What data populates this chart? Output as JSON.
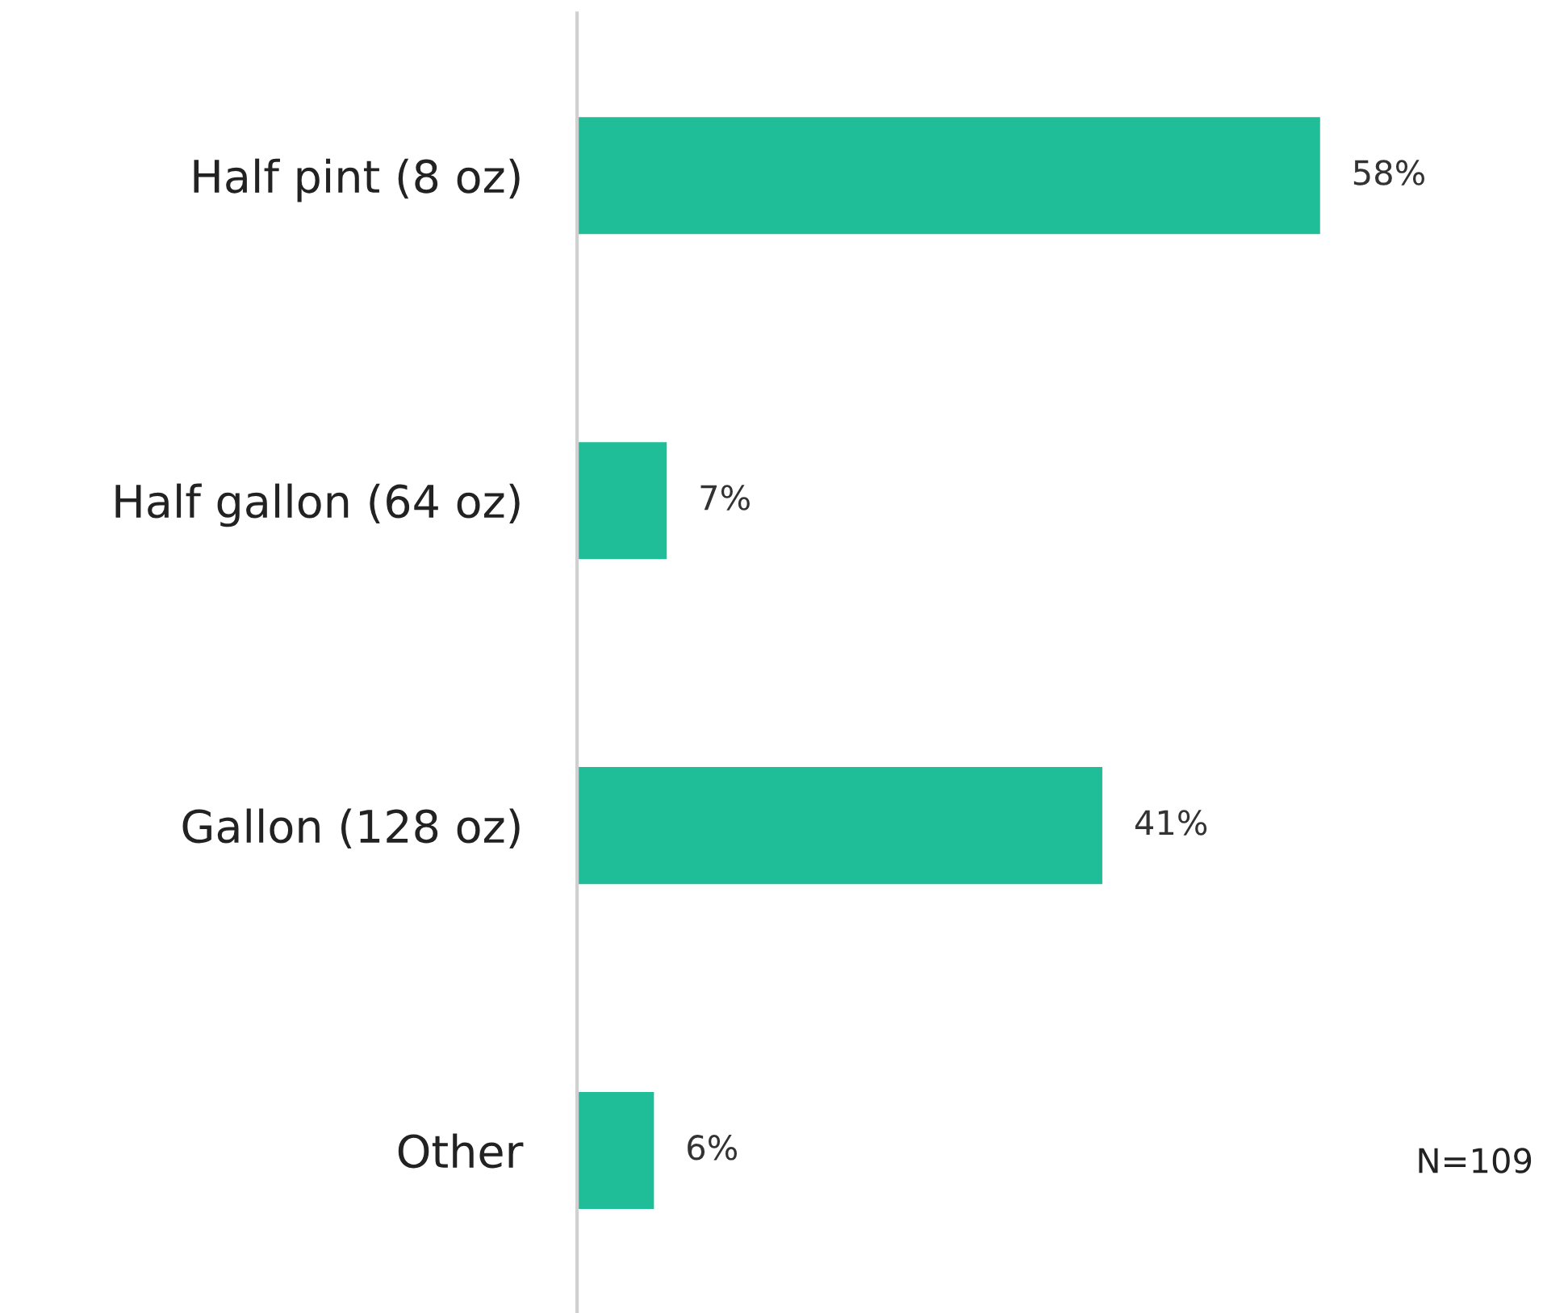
{
  "chart_data": {
    "type": "bar",
    "orientation": "horizontal",
    "categories": [
      "Half pint (8 oz)",
      "Half gallon (64 oz)",
      "Gallon (128 oz)",
      "Other"
    ],
    "values": [
      58,
      7,
      41,
      6
    ],
    "value_labels": [
      "58%",
      "7%",
      "41%",
      "6%"
    ],
    "color": "#20be98",
    "annotations": [
      "N=109"
    ],
    "grid": false,
    "legend": false
  }
}
